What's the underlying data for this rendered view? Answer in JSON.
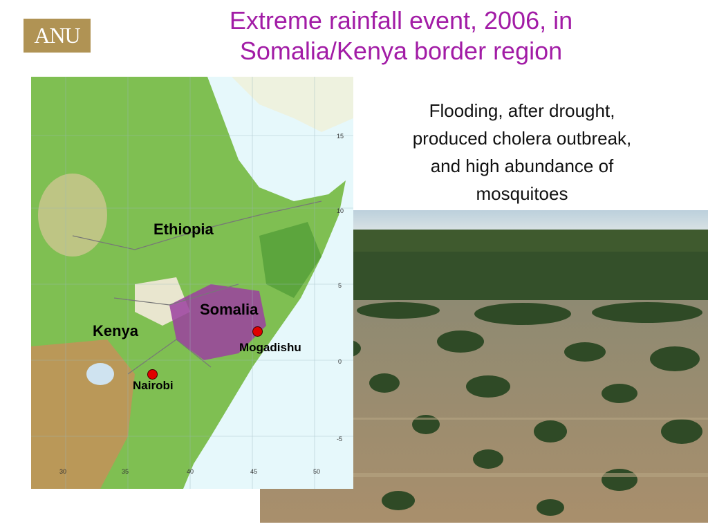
{
  "logo": {
    "text": "ANU",
    "color": "#b09354"
  },
  "slide": {
    "title_line1": "Extreme rainfall event, 2006, in",
    "title_line2": "Somalia/Kenya border region",
    "title_color": "#a21ca6",
    "caption_line1": "Flooding, after drought,",
    "caption_line2": "produced cholera outbreak,",
    "caption_line3": "and high abundance of",
    "caption_line4": "mosquitoes"
  },
  "map": {
    "labels": {
      "ethiopia": "Ethiopia",
      "somalia": "Somalia",
      "kenya": "Kenya",
      "mogadishu": "Mogadishu",
      "nairobi": "Nairobi"
    },
    "lat_ticks": [
      "15",
      "10",
      "5",
      "0",
      "-5"
    ],
    "lon_ticks": [
      "30",
      "35",
      "40",
      "45",
      "50"
    ],
    "colors": {
      "sea": "#e6f8fb",
      "vegetation": "#5fae3c",
      "rainfall_anomaly": "#9b3fa0",
      "city": "#e00000"
    }
  }
}
